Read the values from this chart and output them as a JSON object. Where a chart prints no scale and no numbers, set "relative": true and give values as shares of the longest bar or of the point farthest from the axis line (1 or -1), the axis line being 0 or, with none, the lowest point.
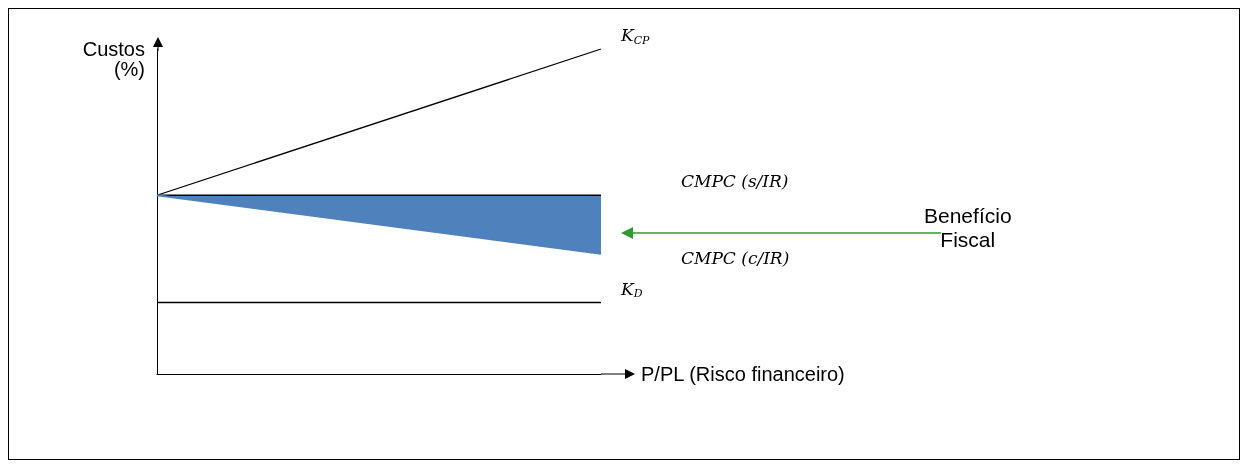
{
  "chart_data": {
    "type": "line",
    "relative": true,
    "xlabel": "P/PL (Risco financeiro)",
    "ylabel": "Custos\n(%)",
    "categories": [
      null,
      null
    ],
    "series": [
      {
        "name": "K$_{CP}$",
        "color": "#000000",
        "values": [
          0.55,
          1.0
        ]
      },
      {
        "name": "CMPC (s/IR)",
        "color": "#000000",
        "values": [
          0.55,
          0.55
        ]
      },
      {
        "name": "CMPC (c/IR)",
        "type": "area",
        "color": "#4f81bd",
        "values": [
          0.55,
          0.37
        ]
      },
      {
        "name": "K$_{D}$",
        "color": "#000000",
        "values": [
          0.22,
          0.22
        ]
      }
    ],
    "annotations": [
      "Benefício\nFiscal"
    ],
    "legend": false,
    "grid": false,
    "marker": "none"
  }
}
